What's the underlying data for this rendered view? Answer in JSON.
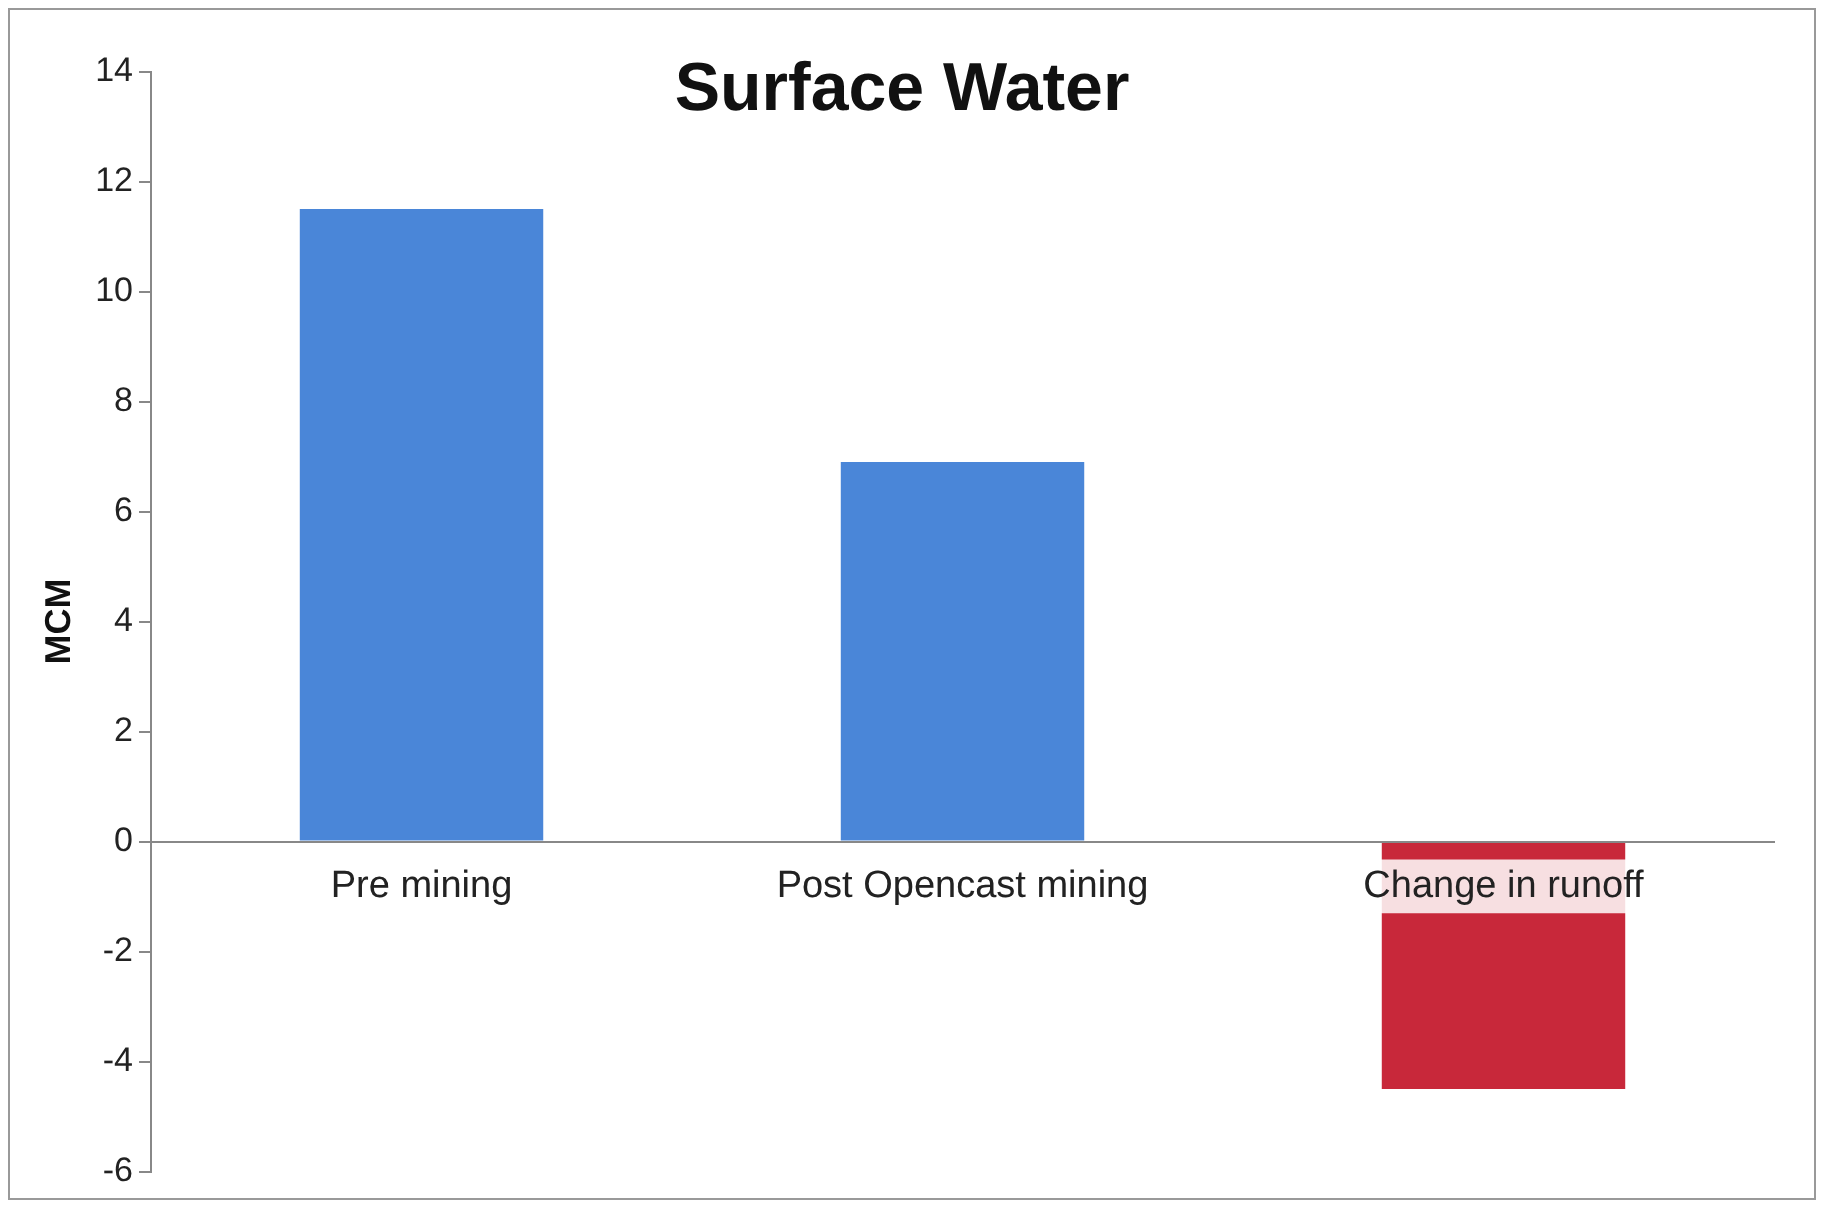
{
  "chart_data": {
    "type": "bar",
    "title": "Surface Water",
    "ylabel": "MCM",
    "categories": [
      "Pre mining",
      "Post Opencast mining",
      "Change in runoff"
    ],
    "values": [
      11.5,
      6.9,
      -4.5
    ],
    "colors": [
      "#4a86d8",
      "#4a86d8",
      "#c8283a"
    ],
    "ylim": [
      -6,
      14
    ],
    "yticks": [
      -6,
      -4,
      -2,
      0,
      2,
      4,
      6,
      8,
      10,
      12,
      14
    ],
    "grid": false,
    "legend": false
  }
}
